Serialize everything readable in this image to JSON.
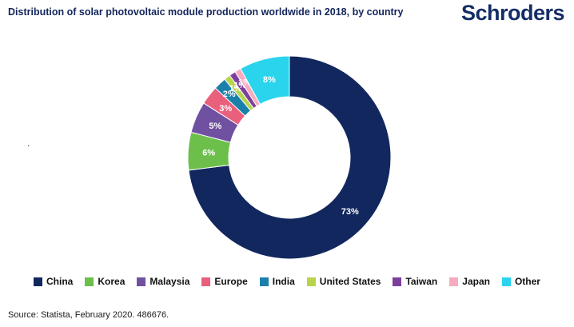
{
  "header": {
    "title": "Distribution of solar photovoltaic module production worldwide in 2018, by country",
    "logo": "Schroders"
  },
  "chart_data": {
    "type": "pie",
    "subtype": "donut",
    "title": "Distribution of solar photovoltaic module production worldwide in 2018, by country",
    "unit": "%",
    "categories": [
      "China",
      "Korea",
      "Malaysia",
      "Europe",
      "India",
      "United States",
      "Taiwan",
      "Japan",
      "Other"
    ],
    "values": [
      73,
      6,
      5,
      3,
      2,
      1,
      1,
      1,
      8
    ],
    "labels": [
      "73%",
      "6%",
      "5%",
      "3%",
      "2%",
      "1%",
      "1%",
      "1%",
      "8%"
    ],
    "colors": [
      "#12275e",
      "#6cbf4b",
      "#7050a0",
      "#e9607c",
      "#1a80aa",
      "#b9d44b",
      "#7d3f9d",
      "#f6abbe",
      "#2ad4ec"
    ],
    "start_angle": 0,
    "direction": "clockwise",
    "legend_position": "bottom"
  },
  "misc": {
    "stray_dot": "."
  },
  "footer": {
    "source": "Source: Statista, February 2020. 486676."
  }
}
